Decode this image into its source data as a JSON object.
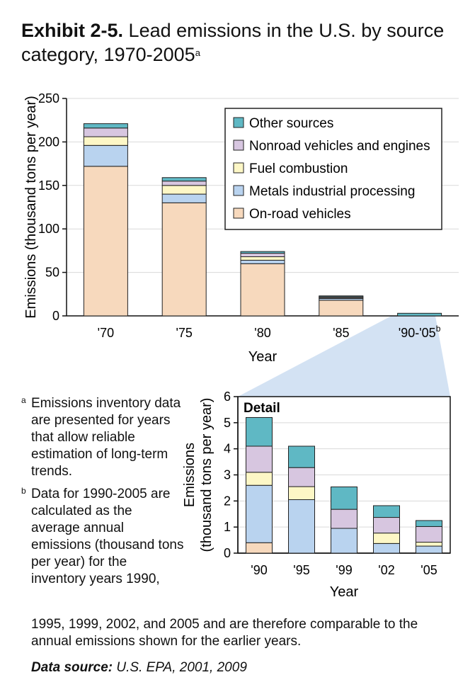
{
  "title": {
    "bold": "Exhibit 2-5.",
    "text": "Lead emissions in the U.S. by source category, 1970-2005",
    "sup": "a"
  },
  "legend_placement": "top-right",
  "colors": {
    "on_road": "#f7d9bd",
    "metals": "#b9d3ef",
    "fuel": "#fdf7c6",
    "nonroad": "#d7c6e0",
    "other": "#5fb8c4",
    "bar_outline": "#222222",
    "detail_wedge": "#d3e2f3",
    "grid": "#d9d9d9"
  },
  "chart_data": [
    {
      "type": "bar",
      "stacked": true,
      "categories": [
        "'70",
        "'75",
        "'80",
        "'85",
        "'90-'05"
      ],
      "category_sup": [
        "",
        "",
        "",
        "",
        "b"
      ],
      "xlabel": "Year",
      "ylabel": "Emissions (thousand tons per year)",
      "ylim": [
        0,
        250
      ],
      "yticks": [
        0,
        50,
        100,
        150,
        200,
        250
      ],
      "grid": true,
      "legend": [
        "Other sources",
        "Nonroad vehicles and engines",
        "Fuel combustion",
        "Metals industrial processing",
        "On-road vehicles"
      ],
      "series": [
        {
          "name": "On-road vehicles",
          "values": [
            172,
            130,
            60,
            18,
            0
          ]
        },
        {
          "name": "Metals industrial processing",
          "values": [
            24,
            10,
            4,
            2,
            0
          ]
        },
        {
          "name": "Fuel combustion",
          "values": [
            10,
            10,
            4,
            1,
            0
          ]
        },
        {
          "name": "Nonroad vehicles and engines",
          "values": [
            10,
            5,
            4,
            1,
            0
          ]
        },
        {
          "name": "Other sources",
          "values": [
            5,
            4,
            2,
            1,
            3
          ]
        }
      ]
    },
    {
      "type": "bar",
      "stacked": true,
      "panel_label": "Detail",
      "categories": [
        "'90",
        "'95",
        "'99",
        "'02",
        "'05"
      ],
      "xlabel": "Year",
      "ylabel": [
        "Emissions",
        "(thousand tons per year)"
      ],
      "ylim": [
        0,
        6
      ],
      "yticks": [
        0,
        1,
        2,
        3,
        4,
        5,
        6
      ],
      "grid": true,
      "series": [
        {
          "name": "On-road vehicles",
          "values": [
            0.4,
            0,
            0,
            0,
            0
          ]
        },
        {
          "name": "Metals industrial processing",
          "values": [
            2.2,
            2.05,
            0.95,
            0.37,
            0.27
          ]
        },
        {
          "name": "Fuel combustion",
          "values": [
            0.5,
            0.5,
            0,
            0.4,
            0.15
          ]
        },
        {
          "name": "Nonroad vehicles and engines",
          "values": [
            1.0,
            0.73,
            0.73,
            0.6,
            0.6
          ]
        },
        {
          "name": "Other sources",
          "values": [
            1.1,
            0.82,
            0.86,
            0.45,
            0.23
          ]
        }
      ]
    }
  ],
  "notes": {
    "a_mark": "a",
    "a_text": "Emissions inventory data are presented for years that allow reliable estimation of long-term trends.",
    "b_mark": "b",
    "b_text": "Data for 1990-2005 are calculated as the average annual emissions (thousand tons per year) for the inventory years 1990,",
    "b_cont": "1995, 1999, 2002, and 2005 and are therefore comparable to the annual emissions shown for the earlier years."
  },
  "source": {
    "label": "Data source:",
    "text": "U.S. EPA, 2001, 2009"
  }
}
